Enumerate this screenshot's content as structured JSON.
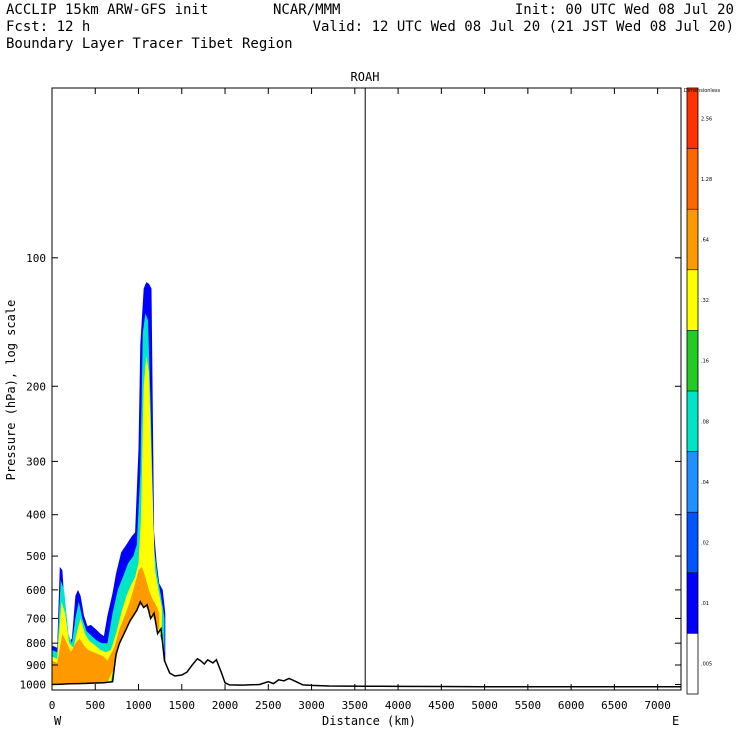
{
  "header": {
    "line1_left": "ACCLIP 15km ARW-GFS init",
    "line1_mid": "NCAR/MMM",
    "line1_right": "Init: 00 UTC Wed 08 Jul 20",
    "line2_left": "Fcst:    12 h",
    "line2_right": "Valid: 12 UTC Wed 08 Jul 20 (21 JST Wed 08 Jul 20)",
    "line3": "Boundary Layer Tracer  Tibet Region"
  },
  "chart_data": {
    "type": "area",
    "title": "ROAH",
    "xlabel": "Distance (km)",
    "ylabel": "Pressure (hPa), log scale",
    "x_end_labels": {
      "left": "W",
      "right": "E"
    },
    "xlim": [
      0,
      7270
    ],
    "ylim": [
      1030,
      40
    ],
    "y_scale": "log",
    "x_ticks": [
      0,
      500,
      1000,
      1500,
      2000,
      2500,
      3000,
      3500,
      4000,
      4500,
      5000,
      5500,
      6000,
      6500,
      7000
    ],
    "y_ticks": [
      100,
      200,
      300,
      400,
      500,
      600,
      700,
      800,
      900,
      1000
    ],
    "vertical_marker_km": 3620,
    "colorbar": {
      "title": "Dimensionless",
      "levels": [
        ".005",
        ".01",
        ".02",
        ".04",
        ".08",
        ".16",
        ".32",
        ".64",
        "1.28",
        "2.56"
      ],
      "colors": [
        "#ffffff",
        "#0000ff",
        "#0055ff",
        "#1e90ff",
        "#00e5c8",
        "#22cc22",
        "#ffff00",
        "#ff9900",
        "#ff6600",
        "#ff3300"
      ]
    },
    "terrain": {
      "x": [
        0,
        100,
        200,
        300,
        400,
        500,
        600,
        700,
        740,
        780,
        820,
        860,
        900,
        940,
        980,
        1020,
        1060,
        1100,
        1140,
        1180,
        1220,
        1260,
        1300,
        1360,
        1420,
        1500,
        1560,
        1620,
        1680,
        1720,
        1760,
        1800,
        1860,
        1900,
        1960,
        2000,
        2050,
        2200,
        2400,
        2500,
        2560,
        2620,
        2680,
        2740,
        2800,
        2900,
        3000,
        3200,
        3600,
        4000,
        4500,
        5000,
        6000,
        7270
      ],
      "p": [
        1000,
        998,
        996,
        995,
        994,
        992,
        990,
        985,
        850,
        800,
        770,
        740,
        710,
        690,
        670,
        640,
        660,
        650,
        700,
        680,
        760,
        740,
        880,
        940,
        955,
        950,
        935,
        900,
        870,
        880,
        895,
        875,
        890,
        875,
        940,
        990,
        1002,
        1003,
        1000,
        985,
        995,
        975,
        980,
        968,
        980,
        1002,
        1005,
        1008,
        1009,
        1010,
        1011,
        1012,
        1012,
        1012
      ]
    },
    "tracer_envelopes": [
      {
        "level": "0.01",
        "color": "#0000ff",
        "x": [
          0,
          60,
          90,
          120,
          150,
          190,
          230,
          270,
          300,
          330,
          370,
          410,
          450,
          500,
          560,
          600,
          640,
          700,
          740,
          800,
          860,
          920,
          960,
          1000,
          1020,
          1060,
          1090,
          1120,
          1150,
          1180,
          1210,
          1240,
          1280,
          1310
        ],
        "top": [
          810,
          820,
          530,
          540,
          680,
          800,
          780,
          620,
          600,
          620,
          690,
          730,
          725,
          740,
          760,
          770,
          690,
          610,
          550,
          490,
          470,
          450,
          440,
          280,
          160,
          118,
          114,
          115,
          118,
          440,
          520,
          580,
          600,
          680
        ]
      },
      {
        "level": "0.04",
        "color": "#00e5c8",
        "x": [
          0,
          60,
          100,
          140,
          190,
          230,
          270,
          310,
          350,
          400,
          460,
          520,
          580,
          640,
          700,
          760,
          820,
          880,
          940,
          980,
          1020,
          1050,
          1080,
          1110,
          1140,
          1180,
          1220,
          1260,
          1300
        ],
        "top": [
          830,
          840,
          570,
          600,
          760,
          800,
          700,
          640,
          700,
          750,
          770,
          790,
          800,
          800,
          680,
          600,
          560,
          520,
          500,
          470,
          320,
          150,
          135,
          140,
          220,
          480,
          560,
          620,
          700
        ]
      },
      {
        "level": "0.32",
        "color": "#ffff00",
        "x": [
          0,
          60,
          110,
          150,
          200,
          250,
          290,
          330,
          380,
          430,
          500,
          560,
          620,
          680,
          740,
          800,
          860,
          920,
          960,
          1000,
          1030,
          1060,
          1090,
          1120,
          1150,
          1190,
          1230,
          1270
        ],
        "top": [
          860,
          870,
          640,
          680,
          800,
          820,
          750,
          700,
          760,
          790,
          810,
          830,
          840,
          830,
          760,
          680,
          620,
          580,
          560,
          520,
          400,
          200,
          170,
          185,
          300,
          540,
          600,
          660
        ]
      },
      {
        "level": "0.64",
        "color": "#ff9900",
        "x": [
          0,
          60,
          120,
          160,
          220,
          270,
          320,
          370,
          420,
          480,
          540,
          600,
          640,
          720,
          780,
          840,
          900,
          960,
          1000,
          1040,
          1080,
          1120,
          1160,
          1200,
          1240
        ],
        "top": [
          880,
          890,
          760,
          790,
          840,
          800,
          780,
          810,
          830,
          840,
          850,
          860,
          880,
          820,
          740,
          690,
          640,
          580,
          540,
          530,
          560,
          600,
          630,
          650,
          680
        ]
      }
    ]
  }
}
